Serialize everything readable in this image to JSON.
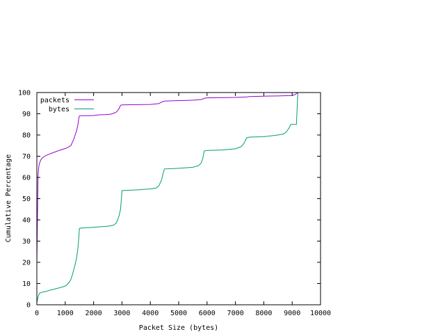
{
  "chart_data": {
    "type": "line",
    "title": "",
    "xlabel": "Packet Size (bytes)",
    "ylabel": "Cumulative Percentage",
    "xlim": [
      0,
      10000
    ],
    "ylim": [
      0,
      100
    ],
    "xticks": [
      "0",
      "1000",
      "2000",
      "3000",
      "4000",
      "5000",
      "6000",
      "7000",
      "8000",
      "9000",
      "10000"
    ],
    "yticks": [
      "0",
      "10",
      "20",
      "30",
      "40",
      "50",
      "60",
      "70",
      "80",
      "90",
      "100"
    ],
    "grid": false,
    "legend_position": "top-left",
    "series": [
      {
        "name": "packets",
        "color": "#9400d3",
        "x": [
          0,
          20,
          40,
          60,
          80,
          100,
          150,
          200,
          300,
          400,
          500,
          600,
          700,
          800,
          900,
          1000,
          1100,
          1200,
          1250,
          1300,
          1350,
          1400,
          1450,
          1480,
          1500,
          1600,
          1800,
          2000,
          2200,
          2400,
          2600,
          2700,
          2800,
          2850,
          2900,
          2950,
          3000,
          3500,
          4000,
          4300,
          4400,
          4500,
          5000,
          5500,
          5800,
          5900,
          6000,
          6500,
          7000,
          7400,
          7500,
          8000,
          8500,
          9000,
          9100,
          9200
        ],
        "y": [
          20,
          40,
          60,
          64,
          66,
          67,
          68.5,
          69.3,
          70.2,
          70.8,
          71.3,
          71.8,
          72.3,
          72.8,
          73.2,
          73.6,
          74.2,
          75,
          76.5,
          78,
          80,
          82,
          85,
          88,
          89,
          89.1,
          89.1,
          89.2,
          89.5,
          89.6,
          89.8,
          90.2,
          90.8,
          91.5,
          92.5,
          94,
          94.2,
          94.3,
          94.4,
          94.8,
          95.5,
          96,
          96.2,
          96.4,
          96.7,
          97.3,
          97.5,
          97.6,
          97.7,
          97.9,
          98.1,
          98.3,
          98.4,
          98.6,
          99,
          100
        ]
      },
      {
        "name": "bytes",
        "color": "#009e73",
        "x": [
          0,
          30,
          60,
          100,
          200,
          300,
          400,
          500,
          600,
          700,
          800,
          900,
          1000,
          1050,
          1100,
          1150,
          1200,
          1250,
          1300,
          1350,
          1400,
          1450,
          1480,
          1500,
          1600,
          2000,
          2500,
          2700,
          2800,
          2850,
          2900,
          2950,
          2980,
          3000,
          3500,
          4000,
          4200,
          4300,
          4350,
          4400,
          4450,
          4500,
          5000,
          5500,
          5700,
          5800,
          5850,
          5900,
          6000,
          6500,
          7000,
          7200,
          7300,
          7350,
          7400,
          7500,
          8000,
          8500,
          8700,
          8800,
          8850,
          8900,
          8950,
          9000,
          9150,
          9200
        ],
        "y": [
          1,
          3,
          4.5,
          5.5,
          6,
          6.2,
          6.6,
          7,
          7.3,
          7.7,
          8,
          8.4,
          8.8,
          9.3,
          10,
          10.8,
          12,
          14,
          16.5,
          19,
          22,
          27,
          32,
          36,
          36.2,
          36.5,
          37,
          37.5,
          38.5,
          40,
          42,
          45,
          50,
          53.8,
          54.1,
          54.6,
          55,
          56,
          57.5,
          59,
          62,
          64,
          64.3,
          64.8,
          65.5,
          67,
          69,
          72.5,
          72.7,
          72.9,
          73.5,
          74.5,
          76,
          77.5,
          78.7,
          79,
          79.2,
          80,
          80.5,
          81.5,
          82.5,
          83.5,
          85,
          85,
          85,
          100
        ]
      }
    ]
  }
}
